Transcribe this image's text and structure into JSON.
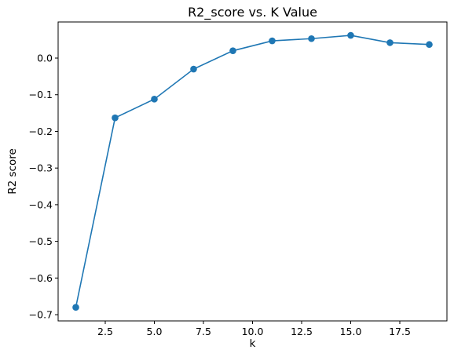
{
  "chart_data": {
    "type": "line",
    "title": "R2_score vs. K Value",
    "xlabel": "k",
    "ylabel": "R2 score",
    "x": [
      1,
      3,
      5,
      7,
      9,
      11,
      13,
      15,
      17,
      19
    ],
    "series": [
      {
        "values": [
          -0.68,
          -0.163,
          -0.112,
          -0.03,
          0.02,
          0.047,
          0.053,
          0.062,
          0.042,
          0.037
        ],
        "color": "#1f77b4",
        "marker": "circle"
      }
    ],
    "xlim": [
      0.1,
      19.9
    ],
    "ylim": [
      -0.717,
      0.0985
    ],
    "xticks": [
      2.5,
      5.0,
      7.5,
      10.0,
      12.5,
      15.0,
      17.5
    ],
    "xtick_labels": [
      "2.5",
      "5.0",
      "7.5",
      "10.0",
      "12.5",
      "15.0",
      "17.5"
    ],
    "yticks": [
      0.0,
      -0.1,
      -0.2,
      -0.3,
      -0.4,
      -0.5,
      -0.6,
      -0.7
    ],
    "ytick_labels": [
      "0.0",
      "−0.1",
      "−0.2",
      "−0.3",
      "−0.4",
      "−0.5",
      "−0.6",
      "−0.7"
    ],
    "grid": false,
    "legend": "none"
  }
}
